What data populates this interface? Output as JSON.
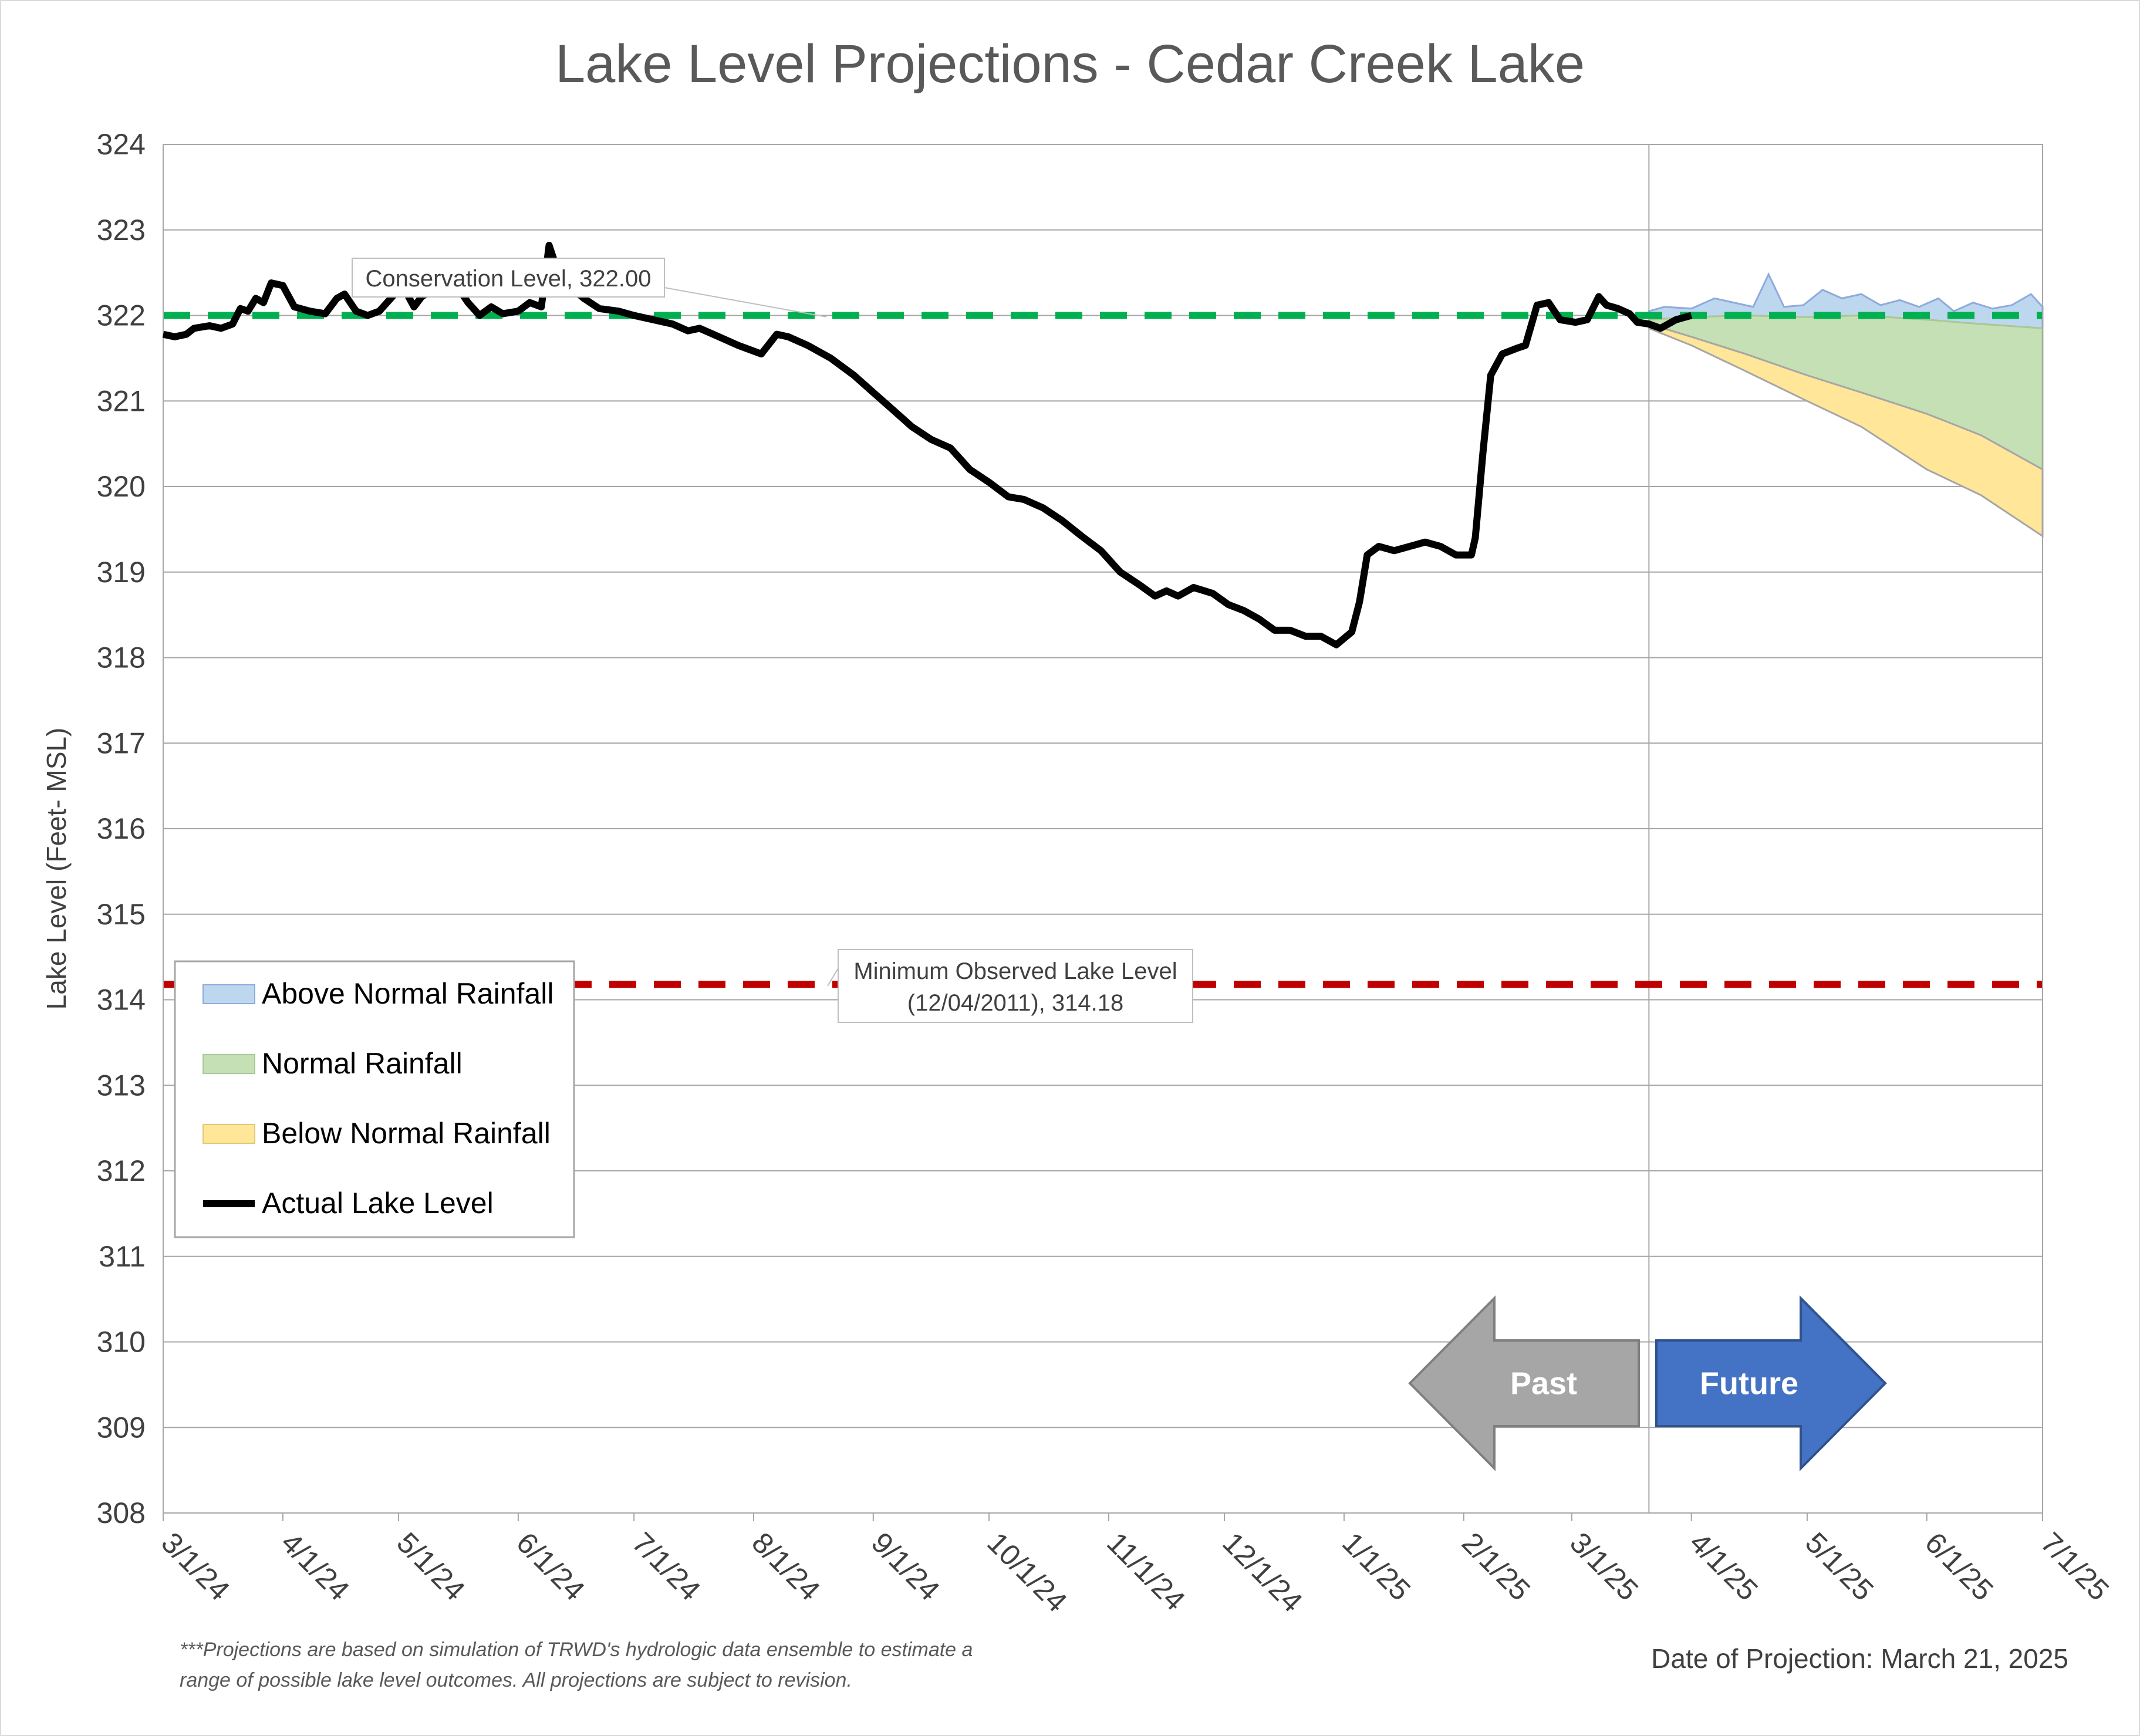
{
  "chart_data": {
    "type": "area",
    "title": "Lake Level Projections - Cedar Creek Lake",
    "xlabel": "",
    "ylabel": "Lake Level (Feet- MSL)",
    "ylim": [
      308,
      324
    ],
    "yticks": [
      "308",
      "309",
      "310",
      "311",
      "312",
      "313",
      "314",
      "315",
      "316",
      "317",
      "318",
      "319",
      "320",
      "321",
      "322",
      "323",
      "324"
    ],
    "xlim": [
      "2024-03-01",
      "2025-07-01"
    ],
    "xticks": [
      {
        "date": "2024-03-01",
        "label": "3/1/24"
      },
      {
        "date": "2024-04-01",
        "label": "4/1/24"
      },
      {
        "date": "2024-05-01",
        "label": "5/1/24"
      },
      {
        "date": "2024-06-01",
        "label": "6/1/24"
      },
      {
        "date": "2024-07-01",
        "label": "7/1/24"
      },
      {
        "date": "2024-08-01",
        "label": "8/1/24"
      },
      {
        "date": "2024-09-01",
        "label": "9/1/24"
      },
      {
        "date": "2024-10-01",
        "label": "10/1/24"
      },
      {
        "date": "2024-11-01",
        "label": "11/1/24"
      },
      {
        "date": "2024-12-01",
        "label": "12/1/24"
      },
      {
        "date": "2025-01-01",
        "label": "1/1/25"
      },
      {
        "date": "2025-02-01",
        "label": "2/1/25"
      },
      {
        "date": "2025-03-01",
        "label": "3/1/25"
      },
      {
        "date": "2025-04-01",
        "label": "4/1/25"
      },
      {
        "date": "2025-05-01",
        "label": "5/1/25"
      },
      {
        "date": "2025-06-01",
        "label": "6/1/25"
      },
      {
        "date": "2025-07-01",
        "label": "7/1/25"
      }
    ],
    "grid": true,
    "legend_position": "bottom-left",
    "projection_date": "2025-03-21",
    "reference_lines": [
      {
        "name": "Conservation Level",
        "value": 322.0,
        "color": "#00b050",
        "label": "Conservation Level, 322.00"
      },
      {
        "name": "Minimum Observed Lake Level",
        "value": 314.18,
        "color": "#c00000",
        "label_line1": "Minimum Observed Lake Level",
        "label_line2": "(12/04/2011), 314.18"
      }
    ],
    "series": [
      {
        "name": "Actual Lake Level",
        "color": "#000000",
        "points": [
          [
            "2024-03-01",
            321.78
          ],
          [
            "2024-03-04",
            321.75
          ],
          [
            "2024-03-07",
            321.78
          ],
          [
            "2024-03-09",
            321.85
          ],
          [
            "2024-03-13",
            321.88
          ],
          [
            "2024-03-16",
            321.85
          ],
          [
            "2024-03-19",
            321.9
          ],
          [
            "2024-03-21",
            322.08
          ],
          [
            "2024-03-23",
            322.05
          ],
          [
            "2024-03-25",
            322.2
          ],
          [
            "2024-03-27",
            322.15
          ],
          [
            "2024-03-29",
            322.38
          ],
          [
            "2024-04-01",
            322.35
          ],
          [
            "2024-04-04",
            322.1
          ],
          [
            "2024-04-08",
            322.05
          ],
          [
            "2024-04-12",
            322.02
          ],
          [
            "2024-04-15",
            322.2
          ],
          [
            "2024-04-17",
            322.25
          ],
          [
            "2024-04-20",
            322.05
          ],
          [
            "2024-04-23",
            322.0
          ],
          [
            "2024-04-26",
            322.05
          ],
          [
            "2024-04-29",
            322.2
          ],
          [
            "2024-05-02",
            322.35
          ],
          [
            "2024-05-05",
            322.1
          ],
          [
            "2024-05-07",
            322.22
          ],
          [
            "2024-05-10",
            322.3
          ],
          [
            "2024-05-13",
            322.25
          ],
          [
            "2024-05-16",
            322.35
          ],
          [
            "2024-05-19",
            322.15
          ],
          [
            "2024-05-22",
            322.0
          ],
          [
            "2024-05-25",
            322.1
          ],
          [
            "2024-05-28",
            322.02
          ],
          [
            "2024-06-01",
            322.05
          ],
          [
            "2024-06-04",
            322.15
          ],
          [
            "2024-06-07",
            322.1
          ],
          [
            "2024-06-09",
            322.82
          ],
          [
            "2024-06-11",
            322.55
          ],
          [
            "2024-06-14",
            322.35
          ],
          [
            "2024-06-18",
            322.2
          ],
          [
            "2024-06-22",
            322.08
          ],
          [
            "2024-06-27",
            322.05
          ],
          [
            "2024-07-01",
            322.0
          ],
          [
            "2024-07-06",
            321.95
          ],
          [
            "2024-07-11",
            321.9
          ],
          [
            "2024-07-15",
            321.82
          ],
          [
            "2024-07-18",
            321.85
          ],
          [
            "2024-07-23",
            321.75
          ],
          [
            "2024-07-28",
            321.65
          ],
          [
            "2024-08-03",
            321.55
          ],
          [
            "2024-08-07",
            321.78
          ],
          [
            "2024-08-10",
            321.75
          ],
          [
            "2024-08-15",
            321.65
          ],
          [
            "2024-08-21",
            321.5
          ],
          [
            "2024-08-27",
            321.3
          ],
          [
            "2024-09-01",
            321.1
          ],
          [
            "2024-09-06",
            320.9
          ],
          [
            "2024-09-11",
            320.7
          ],
          [
            "2024-09-16",
            320.55
          ],
          [
            "2024-09-21",
            320.45
          ],
          [
            "2024-09-26",
            320.2
          ],
          [
            "2024-10-01",
            320.05
          ],
          [
            "2024-10-06",
            319.88
          ],
          [
            "2024-10-10",
            319.85
          ],
          [
            "2024-10-15",
            319.75
          ],
          [
            "2024-10-20",
            319.6
          ],
          [
            "2024-10-25",
            319.42
          ],
          [
            "2024-10-30",
            319.25
          ],
          [
            "2024-11-04",
            319.0
          ],
          [
            "2024-11-09",
            318.85
          ],
          [
            "2024-11-13",
            318.72
          ],
          [
            "2024-11-16",
            318.78
          ],
          [
            "2024-11-19",
            318.72
          ],
          [
            "2024-11-23",
            318.82
          ],
          [
            "2024-11-28",
            318.75
          ],
          [
            "2024-12-02",
            318.62
          ],
          [
            "2024-12-06",
            318.55
          ],
          [
            "2024-12-10",
            318.45
          ],
          [
            "2024-12-14",
            318.32
          ],
          [
            "2024-12-18",
            318.32
          ],
          [
            "2024-12-22",
            318.25
          ],
          [
            "2024-12-26",
            318.25
          ],
          [
            "2024-12-30",
            318.15
          ],
          [
            "2025-01-03",
            318.3
          ],
          [
            "2025-01-05",
            318.65
          ],
          [
            "2025-01-07",
            319.2
          ],
          [
            "2025-01-10",
            319.3
          ],
          [
            "2025-01-14",
            319.25
          ],
          [
            "2025-01-18",
            319.3
          ],
          [
            "2025-01-22",
            319.35
          ],
          [
            "2025-01-26",
            319.3
          ],
          [
            "2025-01-30",
            319.2
          ],
          [
            "2025-02-03",
            319.2
          ],
          [
            "2025-02-04",
            319.4
          ],
          [
            "2025-02-06",
            320.4
          ],
          [
            "2025-02-08",
            321.3
          ],
          [
            "2025-02-11",
            321.55
          ],
          [
            "2025-02-15",
            321.62
          ],
          [
            "2025-02-17",
            321.65
          ],
          [
            "2025-02-20",
            322.12
          ],
          [
            "2025-02-23",
            322.15
          ],
          [
            "2025-02-26",
            321.95
          ],
          [
            "2025-03-02",
            321.92
          ],
          [
            "2025-03-05",
            321.95
          ],
          [
            "2025-03-08",
            322.22
          ],
          [
            "2025-03-10",
            322.12
          ],
          [
            "2025-03-13",
            322.08
          ],
          [
            "2025-03-16",
            322.02
          ],
          [
            "2025-03-18",
            321.92
          ],
          [
            "2025-03-21",
            321.9
          ],
          [
            "2025-03-24",
            321.85
          ],
          [
            "2025-03-28",
            321.95
          ],
          [
            "2025-04-01",
            322.0
          ]
        ]
      },
      {
        "name": "Above Normal Rainfall",
        "color": "#bdd7ee",
        "points": [
          [
            "2025-03-21",
            322.05
          ],
          [
            "2025-03-25",
            322.1
          ],
          [
            "2025-04-01",
            322.08
          ],
          [
            "2025-04-07",
            322.2
          ],
          [
            "2025-04-12",
            322.15
          ],
          [
            "2025-04-17",
            322.1
          ],
          [
            "2025-04-21",
            322.48
          ],
          [
            "2025-04-25",
            322.1
          ],
          [
            "2025-04-30",
            322.12
          ],
          [
            "2025-05-05",
            322.3
          ],
          [
            "2025-05-10",
            322.2
          ],
          [
            "2025-05-15",
            322.25
          ],
          [
            "2025-05-20",
            322.12
          ],
          [
            "2025-05-25",
            322.18
          ],
          [
            "2025-05-30",
            322.1
          ],
          [
            "2025-06-04",
            322.2
          ],
          [
            "2025-06-08",
            322.05
          ],
          [
            "2025-06-13",
            322.15
          ],
          [
            "2025-06-18",
            322.08
          ],
          [
            "2025-06-23",
            322.12
          ],
          [
            "2025-06-28",
            322.25
          ],
          [
            "2025-07-01",
            322.1
          ]
        ]
      },
      {
        "name": "Normal Rainfall",
        "color": "#c5e0b4",
        "points": [
          [
            "2025-03-21",
            321.95
          ],
          [
            "2025-04-01",
            321.98
          ],
          [
            "2025-04-15",
            322.0
          ],
          [
            "2025-05-01",
            321.98
          ],
          [
            "2025-05-15",
            322.0
          ],
          [
            "2025-06-01",
            321.95
          ],
          [
            "2025-06-15",
            321.9
          ],
          [
            "2025-07-01",
            321.85
          ]
        ]
      },
      {
        "name": "Below Normal Rainfall",
        "color": "#ffe699",
        "points": [
          [
            "2025-03-21",
            321.9
          ],
          [
            "2025-04-01",
            321.75
          ],
          [
            "2025-04-15",
            321.55
          ],
          [
            "2025-05-01",
            321.3
          ],
          [
            "2025-05-15",
            321.1
          ],
          [
            "2025-06-01",
            320.85
          ],
          [
            "2025-06-15",
            320.6
          ],
          [
            "2025-07-01",
            320.2
          ]
        ]
      },
      {
        "name": "Below Normal Rainfall (lower bound)",
        "color": "#ffe699",
        "points": [
          [
            "2025-03-21",
            321.85
          ],
          [
            "2025-04-01",
            321.65
          ],
          [
            "2025-04-15",
            321.35
          ],
          [
            "2025-05-01",
            321.0
          ],
          [
            "2025-05-15",
            320.7
          ],
          [
            "2025-06-01",
            320.2
          ],
          [
            "2025-06-15",
            319.9
          ],
          [
            "2025-07-01",
            319.42
          ]
        ]
      }
    ]
  },
  "legend": {
    "above": "Above Normal Rainfall",
    "normal": "Normal Rainfall",
    "below": "Below Normal Rainfall",
    "actual": "Actual Lake Level"
  },
  "arrows": {
    "past": "Past",
    "future": "Future",
    "past_color": "#a6a6a6",
    "future_color": "#4472c4"
  },
  "footnote": {
    "line1": "***Projections are based on simulation of TRWD's hydrologic data ensemble to estimate a",
    "line2": "range of possible lake level outcomes.  All projections are subject to revision."
  },
  "projection_date_text": "Date of Projection: March 21, 2025"
}
